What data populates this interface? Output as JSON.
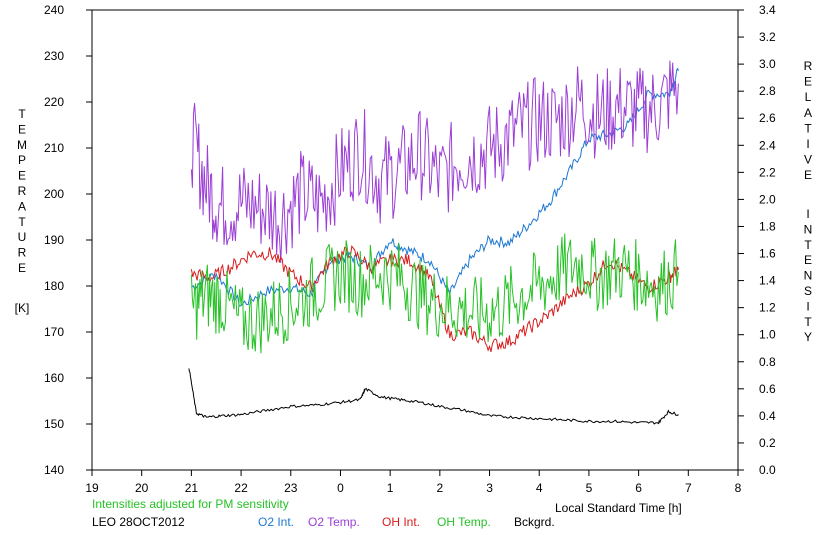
{
  "chart_data": {
    "type": "line",
    "title": "",
    "note": "Intensities adjusted for PM sensitivity",
    "location_date": "LEO 28OCT2012",
    "xlabel": "Local Standard Time [h]",
    "ylabel_left": [
      "T",
      "E",
      "M",
      "P",
      "E",
      "R",
      "A",
      "T",
      "U",
      "R",
      "E"
    ],
    "ylabel_left_unit": "[K]",
    "ylabel_right": [
      "R",
      "E",
      "L",
      "A",
      "T",
      "I",
      "V",
      "E"
    ],
    "ylabel_right_2": [
      "I",
      "N",
      "T",
      "E",
      "N",
      "S",
      "I",
      "T",
      "Y"
    ],
    "x_ticks": [
      "19",
      "20",
      "21",
      "22",
      "23",
      "0",
      "1",
      "2",
      "3",
      "4",
      "5",
      "6",
      "7",
      "8"
    ],
    "y_left_ticks": [
      "140",
      "150",
      "160",
      "170",
      "180",
      "190",
      "200",
      "210",
      "220",
      "230",
      "240"
    ],
    "y_right_ticks": [
      "0.0",
      "0.2",
      "0.4",
      "0.6",
      "0.8",
      "1.0",
      "1.2",
      "1.4",
      "1.6",
      "1.8",
      "2.0",
      "2.2",
      "2.4",
      "2.6",
      "2.8",
      "3.0",
      "3.2",
      "3.4"
    ],
    "ylim_left": [
      140,
      240
    ],
    "ylim_right": [
      0.0,
      3.4
    ],
    "xlim": [
      19,
      32
    ],
    "grid": false,
    "series": [
      {
        "name": "O2 Int.",
        "axis": "right",
        "color": "#1e78d2",
        "x": [
          21.0,
          21.5,
          22.0,
          22.5,
          23.0,
          23.4,
          23.8,
          24.2,
          24.6,
          25.0,
          25.4,
          25.8,
          26.2,
          26.6,
          27.0,
          27.4,
          27.8,
          28.2,
          28.6,
          29.0,
          29.4,
          29.8,
          30.2,
          30.6,
          30.8
        ],
        "y": [
          1.35,
          1.45,
          1.22,
          1.32,
          1.35,
          1.3,
          1.55,
          1.58,
          1.5,
          1.7,
          1.62,
          1.55,
          1.3,
          1.55,
          1.7,
          1.68,
          1.82,
          1.98,
          2.2,
          2.45,
          2.48,
          2.55,
          2.78,
          2.78,
          2.95
        ]
      },
      {
        "name": "O2 Temp.",
        "axis": "left",
        "color": "#9b3fd6",
        "x": [
          21.0,
          21.3,
          21.6,
          22.0,
          22.4,
          22.8,
          23.2,
          23.6,
          24.0,
          24.4,
          24.8,
          25.2,
          25.6,
          26.0,
          26.4,
          26.8,
          27.2,
          27.6,
          28.0,
          28.4,
          28.8,
          29.2,
          29.6,
          30.0,
          30.4,
          30.8
        ],
        "y": [
          212,
          202,
          197,
          198,
          197,
          195,
          200,
          198,
          205,
          210,
          203,
          205,
          209,
          203,
          208,
          209,
          211,
          214,
          216,
          216,
          220,
          217,
          219,
          218,
          219,
          224
        ]
      },
      {
        "name": "OH Int.",
        "axis": "right",
        "color": "#d81c1c",
        "x": [
          21.0,
          21.4,
          21.8,
          22.2,
          22.6,
          23.0,
          23.4,
          23.8,
          24.2,
          24.6,
          25.0,
          25.4,
          25.8,
          26.2,
          26.6,
          27.0,
          27.4,
          27.8,
          28.2,
          28.6,
          29.0,
          29.4,
          29.8,
          30.2,
          30.6,
          30.8
        ],
        "y": [
          1.45,
          1.42,
          1.5,
          1.6,
          1.6,
          1.45,
          1.35,
          1.55,
          1.62,
          1.5,
          1.55,
          1.55,
          1.42,
          1.0,
          1.02,
          0.92,
          0.95,
          1.05,
          1.15,
          1.28,
          1.38,
          1.55,
          1.45,
          1.35,
          1.42,
          1.48
        ]
      },
      {
        "name": "OH Temp.",
        "axis": "left",
        "color": "#26c226",
        "x": [
          21.0,
          21.3,
          21.6,
          22.0,
          22.4,
          22.8,
          23.2,
          23.6,
          24.0,
          24.4,
          24.8,
          25.2,
          25.6,
          26.0,
          26.4,
          26.8,
          27.2,
          27.6,
          28.0,
          28.4,
          28.8,
          29.2,
          29.6,
          30.0,
          30.4,
          30.8
        ],
        "y": [
          175,
          178,
          177,
          172,
          173,
          175,
          177,
          180,
          183,
          181,
          183,
          182,
          178,
          176,
          175,
          174,
          175,
          178,
          180,
          183,
          185,
          182,
          184,
          182,
          180,
          183
        ]
      },
      {
        "name": "Bckgrd.",
        "axis": "right",
        "color": "#000000",
        "x": [
          20.95,
          21.1,
          21.3,
          21.6,
          22.0,
          22.5,
          23.0,
          23.5,
          24.0,
          24.4,
          24.5,
          24.8,
          25.2,
          25.6,
          26.0,
          26.5,
          27.0,
          27.5,
          28.0,
          28.5,
          29.0,
          29.5,
          30.0,
          30.4,
          30.6,
          30.8
        ],
        "y": [
          0.76,
          0.42,
          0.39,
          0.4,
          0.41,
          0.44,
          0.47,
          0.48,
          0.5,
          0.52,
          0.6,
          0.54,
          0.52,
          0.5,
          0.47,
          0.44,
          0.4,
          0.39,
          0.38,
          0.37,
          0.36,
          0.36,
          0.35,
          0.35,
          0.43,
          0.41
        ]
      }
    ]
  }
}
